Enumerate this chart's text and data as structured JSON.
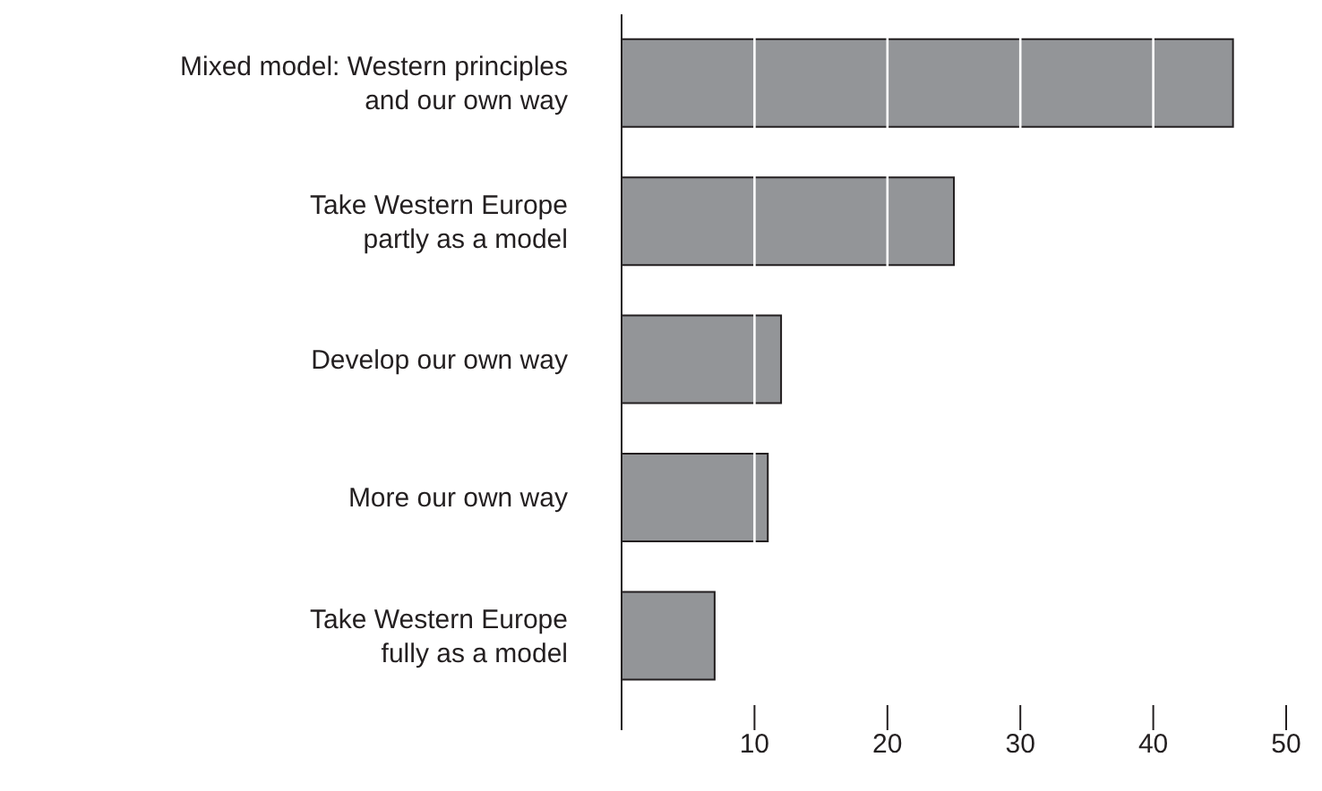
{
  "chart_data": {
    "type": "bar",
    "orientation": "horizontal",
    "categories": [
      "Mixed model: Western principles and our own way",
      "Take Western Europe partly as a model",
      "Develop our own way",
      "More our own way",
      "Take Western Europe fully as a model"
    ],
    "values": [
      46,
      25,
      12,
      11,
      7
    ],
    "color": "#939598",
    "xlim": [
      0,
      50
    ],
    "xticks": [
      {
        "value": 0,
        "label": null
      },
      10,
      20,
      30,
      40,
      50
    ],
    "grid": "x"
  }
}
